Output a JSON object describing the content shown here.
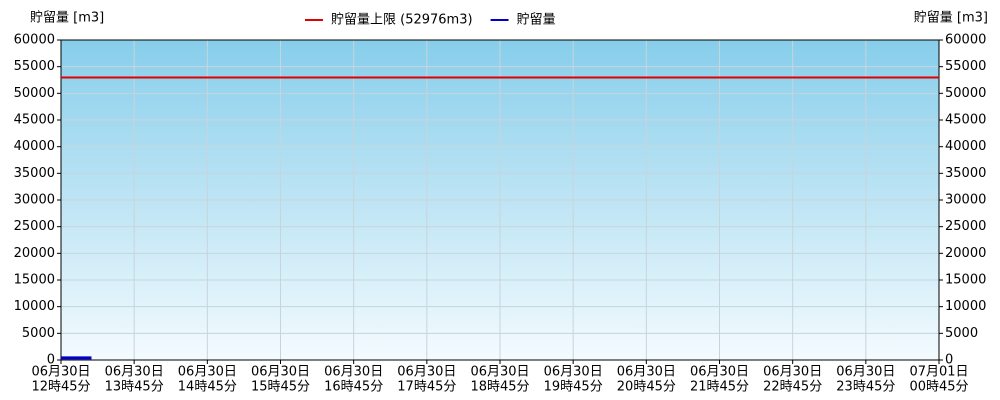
{
  "chart_data": {
    "type": "line",
    "ylabel": "貯留量 [m3]",
    "y2label": "貯留量 [m3]",
    "xlim": [
      0,
      720
    ],
    "xticks": [
      {
        "value": 0,
        "label": [
          "06月30日",
          "12時45分"
        ]
      },
      {
        "value": 60,
        "label": [
          "06月30日",
          "13時45分"
        ]
      },
      {
        "value": 120,
        "label": [
          "06月30日",
          "14時45分"
        ]
      },
      {
        "value": 180,
        "label": [
          "06月30日",
          "15時45分"
        ]
      },
      {
        "value": 240,
        "label": [
          "06月30日",
          "16時45分"
        ]
      },
      {
        "value": 300,
        "label": [
          "06月30日",
          "17時45分"
        ]
      },
      {
        "value": 360,
        "label": [
          "06月30日",
          "18時45分"
        ]
      },
      {
        "value": 420,
        "label": [
          "06月30日",
          "19時45分"
        ]
      },
      {
        "value": 480,
        "label": [
          "06月30日",
          "20時45分"
        ]
      },
      {
        "value": 540,
        "label": [
          "06月30日",
          "21時45分"
        ]
      },
      {
        "value": 600,
        "label": [
          "06月30日",
          "22時45分"
        ]
      },
      {
        "value": 660,
        "label": [
          "06月30日",
          "23時45分"
        ]
      },
      {
        "value": 720,
        "label": [
          "07月01日",
          "00時45分"
        ]
      }
    ],
    "ylim": [
      0,
      60000
    ],
    "yticks": [
      0,
      5000,
      10000,
      15000,
      20000,
      25000,
      30000,
      35000,
      40000,
      45000,
      50000,
      55000,
      60000
    ],
    "y2lim": [
      0,
      60000
    ],
    "y2ticks": [
      0,
      5000,
      10000,
      15000,
      20000,
      25000,
      30000,
      35000,
      40000,
      45000,
      50000,
      55000,
      60000
    ],
    "grid": true,
    "limit": {
      "name": "貯留量上限 (52976m3)",
      "color": "#e00000",
      "value": 52976
    },
    "series": [
      {
        "name": "貯留量",
        "color": "#0000cc",
        "x": [
          0,
          5,
          10,
          15,
          20,
          25
        ],
        "values": [
          400,
          400,
          400,
          400,
          400,
          400
        ]
      }
    ]
  }
}
